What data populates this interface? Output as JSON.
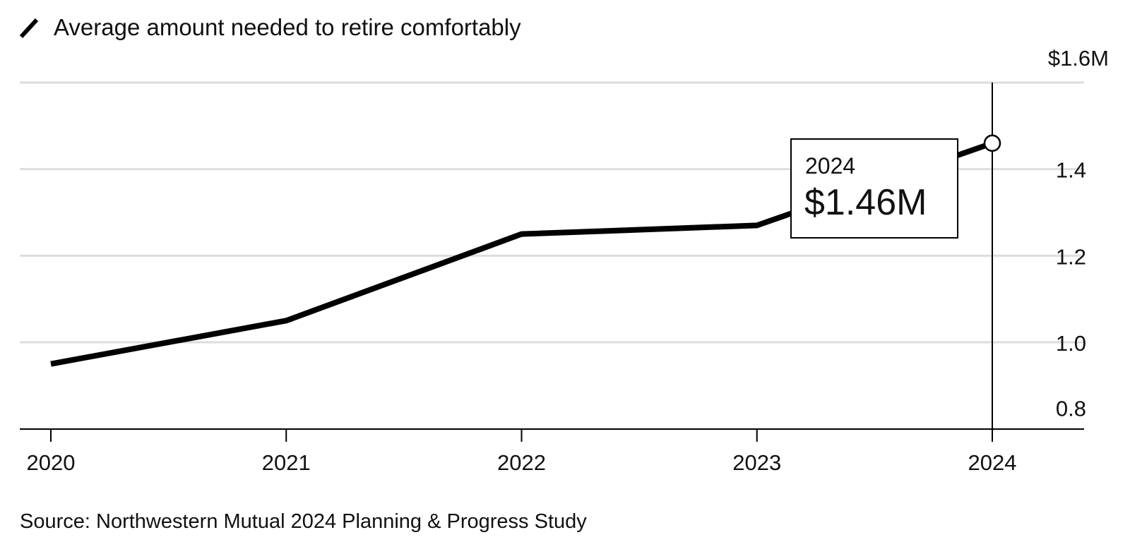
{
  "chart_data": {
    "type": "line",
    "title": "",
    "legend": [
      {
        "label": "Average amount needed to retire comfortably",
        "color": "#000000"
      }
    ],
    "x": [
      "2020",
      "2021",
      "2022",
      "2023",
      "2024"
    ],
    "series": [
      {
        "name": "Average amount needed to retire comfortably",
        "values": [
          0.95,
          1.05,
          1.25,
          1.27,
          1.46
        ]
      }
    ],
    "y_unit": "$M",
    "ylim": [
      0.75,
      1.6
    ],
    "y_ticks": [
      {
        "value": 1.6,
        "label": "$1.6M"
      },
      {
        "value": 1.4,
        "label": "1.4"
      },
      {
        "value": 1.2,
        "label": "1.2"
      },
      {
        "value": 1.0,
        "label": "1.0"
      },
      {
        "value": 0.8,
        "label": "0.8"
      }
    ],
    "grid": true,
    "y_axis_side": "right",
    "callout": {
      "year": "2024",
      "value": "$1.46M"
    },
    "source": "Source: Northwestern Mutual 2024 Planning & Progress Study"
  },
  "colors": {
    "line": "#000000",
    "grid": "#dddddd",
    "text": "#111111",
    "axis": "#000000"
  }
}
